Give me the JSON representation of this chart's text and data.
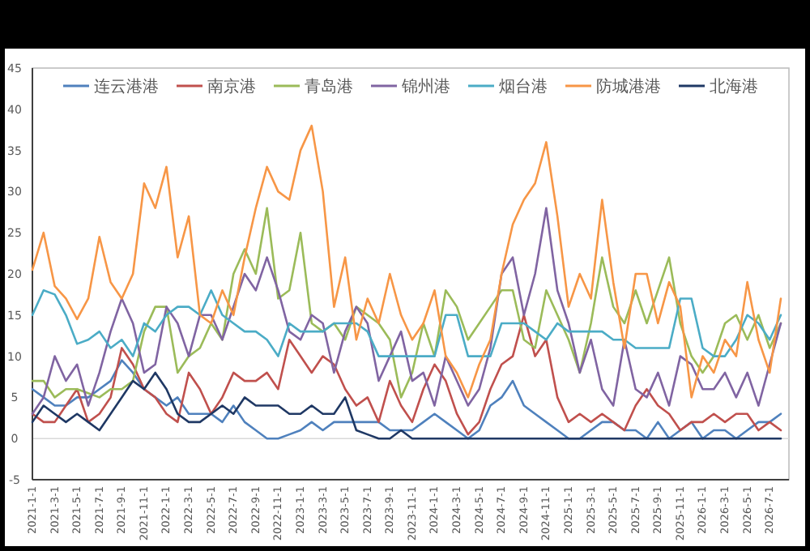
{
  "chart_data": {
    "type": "line",
    "categories": [
      "2021-1-1",
      null,
      "2021-3-1",
      null,
      "2021-5-1",
      null,
      "2021-7-1",
      null,
      "2021-9-1",
      null,
      "2021-11-1",
      null,
      "2022-1-1",
      null,
      "2022-3-1",
      null,
      "2022-5-1",
      null,
      "2022-7-1",
      null,
      "2022-9-1",
      null,
      "2022-11-1",
      null,
      "2023-1-1",
      null,
      "2023-3-1",
      null,
      "2023-5-1",
      null,
      "2023-7-1",
      null,
      "2023-9-1",
      null,
      "2023-11-1",
      null,
      "2024-1-1",
      null,
      "2024-3-1",
      null,
      "2024-5-1",
      null,
      "2024-7-1",
      null,
      "2024-9-1",
      null,
      "2024-11-1",
      null,
      "2025-1-1",
      null,
      "2025-3-1",
      null,
      "2025-5-1",
      null,
      "2025-7-1",
      null,
      "2025-9-1",
      null,
      "2025-11-1",
      null,
      "2026-1-1",
      null,
      "2026-3-1",
      null,
      "2026-5-1",
      null,
      "2026-7-1",
      null
    ],
    "series": [
      {
        "name": "连云港港",
        "color": "#4f81bd",
        "values": [
          6,
          5,
          4,
          4,
          5,
          5,
          6,
          7,
          9.5,
          8,
          6,
          5,
          4,
          5,
          3,
          3,
          3,
          2,
          4,
          2,
          1,
          0,
          0,
          0.5,
          1,
          2,
          1,
          2,
          2,
          2,
          2,
          2,
          1,
          1,
          1,
          2,
          3,
          2,
          1,
          0,
          1,
          4,
          5,
          7,
          4,
          3,
          2,
          1,
          0,
          0,
          1,
          2,
          2,
          1,
          1,
          0,
          2,
          0,
          1,
          2,
          0,
          1,
          1,
          0,
          1,
          2,
          2,
          3
        ]
      },
      {
        "name": "南京港",
        "color": "#c0504d",
        "values": [
          3,
          2,
          2,
          4,
          6,
          2,
          3,
          5,
          11,
          9,
          6,
          5,
          3,
          2,
          8,
          6,
          3,
          5,
          8,
          7,
          7,
          8,
          6,
          12,
          10,
          8,
          10,
          9,
          6,
          4,
          5,
          2,
          7,
          4,
          2,
          6,
          9,
          7,
          3,
          0.5,
          2,
          6,
          9,
          10,
          15,
          10,
          12,
          5,
          2,
          3,
          2,
          3,
          2,
          1,
          4,
          6,
          4,
          3,
          1,
          2,
          2,
          3,
          2,
          3,
          3,
          1,
          2,
          1
        ]
      },
      {
        "name": "青岛港",
        "color": "#9bbb59",
        "values": [
          7,
          7,
          5,
          6,
          6,
          5.5,
          5,
          6,
          6,
          7,
          13,
          16,
          16,
          8,
          10,
          11,
          14,
          12,
          20,
          23,
          20,
          28,
          17,
          18,
          25,
          14,
          13,
          14,
          12,
          16,
          15,
          14,
          12,
          5,
          8,
          14,
          10,
          18,
          16,
          12,
          14,
          16,
          18,
          18,
          12,
          11,
          18,
          15,
          12,
          8,
          14,
          22,
          16,
          14,
          18,
          14,
          18,
          22,
          14,
          10,
          8,
          10,
          14,
          15,
          12,
          15,
          11,
          14
        ]
      },
      {
        "name": "锦州港",
        "color": "#8064a2",
        "values": [
          3,
          5,
          10,
          7,
          9,
          4,
          8,
          13,
          17,
          14,
          8,
          9,
          16,
          14,
          10,
          15,
          15,
          12,
          16,
          20,
          18,
          22,
          18,
          13,
          12,
          15,
          14,
          8,
          13,
          16,
          14,
          7,
          10,
          13,
          7,
          8,
          4,
          10,
          7,
          4,
          6,
          11,
          20,
          22,
          15,
          20,
          28,
          18,
          14,
          8,
          12,
          6,
          4,
          12,
          6,
          5,
          8,
          4,
          10,
          9,
          6,
          6,
          8,
          5,
          8,
          4,
          9,
          14
        ]
      },
      {
        "name": "烟台港",
        "color": "#4bacc6",
        "values": [
          15,
          18,
          17.5,
          15,
          11.5,
          12,
          13,
          11,
          12,
          10,
          14,
          13,
          15,
          16,
          16,
          15,
          18,
          15,
          14,
          13,
          13,
          12,
          10,
          14,
          13,
          13,
          13,
          14,
          14,
          14,
          13,
          10,
          10,
          10,
          10,
          10,
          10,
          15,
          15,
          10,
          10,
          10,
          14,
          14,
          14,
          13,
          12,
          14,
          13,
          13,
          13,
          13,
          12,
          12,
          11,
          11,
          11,
          11,
          17,
          17,
          11,
          10,
          10,
          12,
          15,
          14,
          12,
          15
        ]
      },
      {
        "name": "防城港港",
        "color": "#f79646",
        "values": [
          20.5,
          25,
          18.5,
          17,
          14.5,
          17,
          24.5,
          19,
          17,
          20,
          31,
          28,
          33,
          22,
          27,
          15,
          14,
          18,
          15,
          22,
          28,
          33,
          30,
          29,
          35,
          38,
          30,
          16,
          22,
          12,
          17,
          14,
          20,
          15,
          12,
          14,
          18,
          10,
          8,
          5,
          9,
          12,
          20,
          26,
          29,
          31,
          36,
          27,
          16,
          20,
          17,
          29,
          19,
          11,
          20,
          20,
          14,
          19,
          16,
          5,
          10,
          8,
          12,
          10,
          19,
          12,
          8,
          17
        ]
      },
      {
        "name": "北海港",
        "color": "#1f3864",
        "values": [
          2,
          4,
          3,
          2,
          3,
          2,
          1,
          3,
          5,
          7,
          6,
          8,
          6,
          3,
          2,
          2,
          3,
          4,
          3,
          5,
          4,
          4,
          4,
          3,
          3,
          4,
          3,
          3,
          5,
          1,
          0.5,
          0,
          0,
          1,
          0,
          0,
          0,
          0,
          0,
          0,
          0,
          0,
          0,
          0,
          0,
          0,
          0,
          0,
          0,
          0,
          0,
          0,
          0,
          0,
          0,
          0,
          0,
          0,
          0,
          0,
          0,
          0,
          0,
          0,
          0,
          0,
          0,
          0
        ]
      }
    ],
    "ylim": [
      -5,
      45
    ],
    "yticks": [
      -5,
      0,
      5,
      10,
      15,
      20,
      25,
      30,
      35,
      40,
      45
    ],
    "legend": "top"
  }
}
